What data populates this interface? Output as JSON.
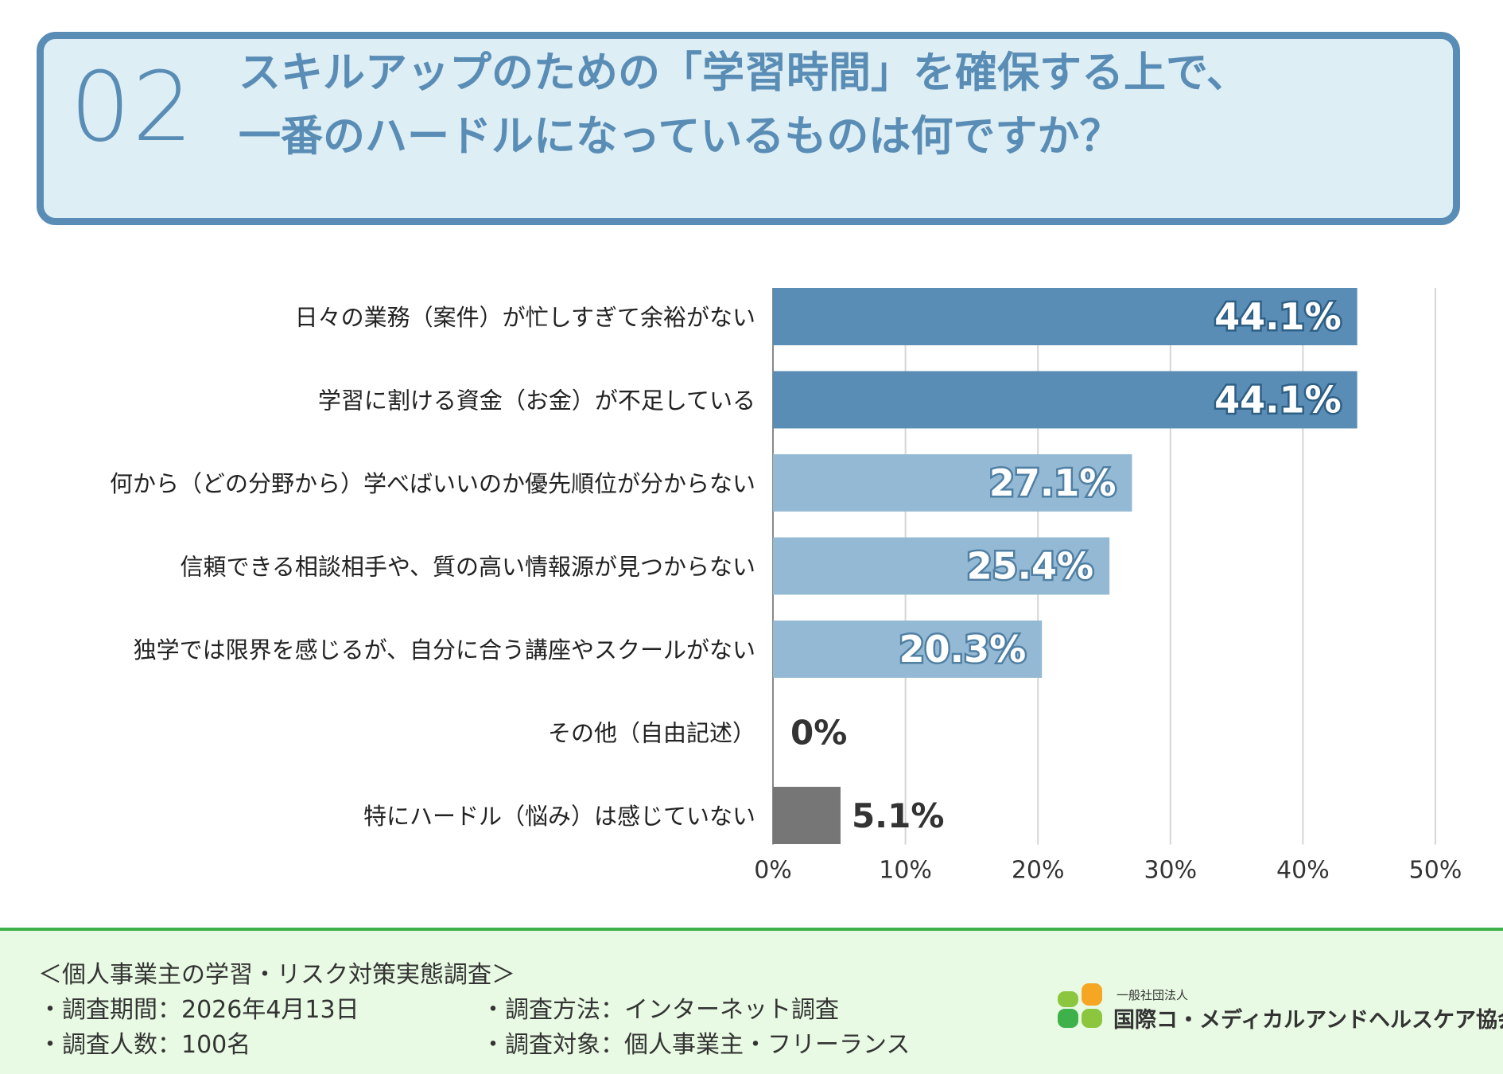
{
  "header": {
    "number": "02",
    "title_line1": "スキルアップのための「学習時間」を確保する上で、",
    "title_line2": "一番のハードルになっているものは何ですか？"
  },
  "chart_data": {
    "type": "bar",
    "orientation": "horizontal",
    "categories": [
      "日々の業務（案件）が忙しすぎて余裕がない",
      "学習に割ける資金（お金）が不足している",
      "何から（どの分野から）学べばいいのか優先順位が分からない",
      "信頼できる相談相手や、質の高い情報源が見つからない",
      "独学では限界を感じるが、自分に合う講座やスクールがない",
      "その他（自由記述）",
      "特にハードル（悩み）は感じていない"
    ],
    "values": [
      44.1,
      44.1,
      27.1,
      25.4,
      20.3,
      0,
      5.1
    ],
    "value_labels": [
      "44.1%",
      "44.1%",
      "27.1%",
      "25.4%",
      "20.3%",
      "0%",
      "5.1%"
    ],
    "colors": [
      "#5a8db5",
      "#5a8db5",
      "#93b9d4",
      "#93b9d4",
      "#93b9d4",
      "#93b9d4",
      "#767676"
    ],
    "xlim": [
      0,
      50
    ],
    "x_ticks": [
      "0%",
      "10%",
      "20%",
      "30%",
      "40%",
      "50%"
    ],
    "grid": true
  },
  "footer": {
    "survey_title": "＜個人事業主の学習・リスク対策実態調査＞",
    "period": "・調査期間：2026年4月13日",
    "method": "・調査方法：インターネット調査",
    "respondents": "・調査人数：100名",
    "target": "・調査対象：個人事業主・フリーランス",
    "org_small": "一般社団法人",
    "org_name": "国際コ・メディカルアンドヘルスケア協会"
  }
}
